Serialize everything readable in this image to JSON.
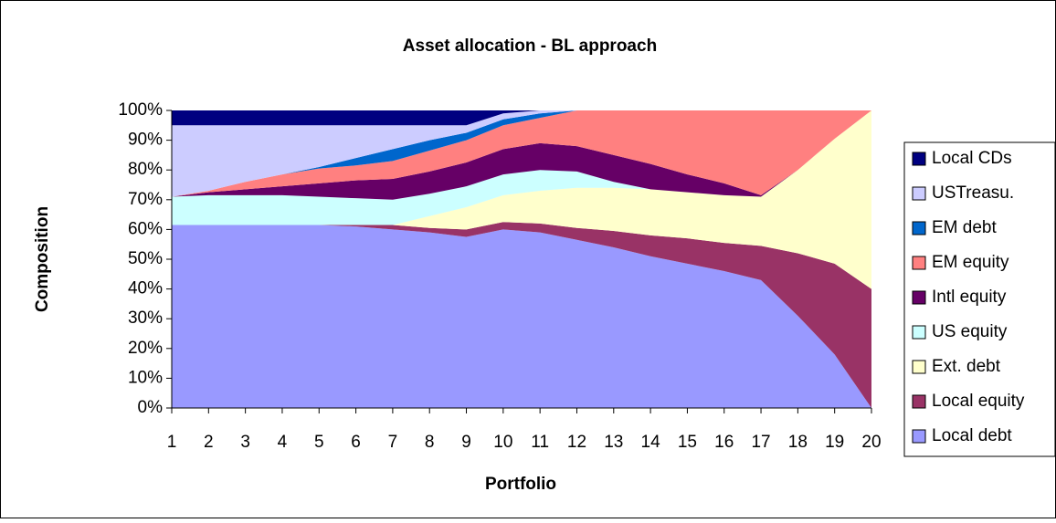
{
  "chart_data": {
    "type": "stacked_area",
    "title": "Asset allocation - BL approach",
    "xlabel": "Portfolio",
    "ylabel": "Composition",
    "categories": [
      "1",
      "2",
      "3",
      "4",
      "5",
      "6",
      "7",
      "8",
      "9",
      "10",
      "11",
      "12",
      "13",
      "14",
      "15",
      "16",
      "17",
      "18",
      "19",
      "20"
    ],
    "ylim": [
      0,
      100
    ],
    "yticks": [
      {
        "value": 0,
        "label": "0%"
      },
      {
        "value": 10,
        "label": "10%"
      },
      {
        "value": 20,
        "label": "20%"
      },
      {
        "value": 30,
        "label": "30%"
      },
      {
        "value": 40,
        "label": "40%"
      },
      {
        "value": 50,
        "label": "50%"
      },
      {
        "value": 60,
        "label": "60%"
      },
      {
        "value": 70,
        "label": "70%"
      },
      {
        "value": 80,
        "label": "80%"
      },
      {
        "value": 90,
        "label": "90%"
      },
      {
        "value": 100,
        "label": "100%"
      }
    ],
    "legend": "right",
    "series": [
      {
        "name": "Local debt",
        "color": "#9999ff",
        "values": [
          61.5,
          61.5,
          61.5,
          61.5,
          61.5,
          61,
          60,
          59,
          57.5,
          60,
          59,
          56.5,
          54,
          51,
          48.5,
          46,
          43,
          31,
          18,
          0
        ]
      },
      {
        "name": "Local equity",
        "color": "#993366",
        "values": [
          0,
          0,
          0,
          0,
          0,
          0.5,
          1.5,
          1.5,
          2.5,
          2.5,
          3,
          4,
          5.5,
          7,
          8.5,
          9.5,
          11.5,
          21,
          30.5,
          40
        ]
      },
      {
        "name": "Ext. debt",
        "color": "#ffffcc",
        "values": [
          0,
          0,
          0,
          0,
          0,
          0,
          0,
          4,
          7.5,
          9,
          11,
          13.5,
          14.5,
          15.5,
          15.5,
          16,
          16.5,
          28,
          42,
          60
        ]
      },
      {
        "name": "US equity",
        "color": "#ccffff",
        "values": [
          9.5,
          10,
          10,
          10,
          9.5,
          9,
          8.5,
          7.5,
          7,
          7,
          7,
          5.5,
          2,
          0,
          0,
          0,
          0,
          0,
          0,
          0
        ]
      },
      {
        "name": "Intl equity",
        "color": "#660066",
        "values": [
          0,
          1,
          2,
          3,
          4.5,
          6,
          7,
          7.5,
          8,
          8.5,
          9,
          8.5,
          9,
          8.5,
          6,
          4,
          0.5,
          0,
          0,
          0
        ]
      },
      {
        "name": "EM equity",
        "color": "#ff8080",
        "values": [
          0,
          0.5,
          2.5,
          4,
          5,
          5,
          6,
          7,
          7.5,
          8,
          8.5,
          12,
          15,
          18,
          21.5,
          24.5,
          28.5,
          20,
          9.5,
          0
        ]
      },
      {
        "name": "EM debt",
        "color": "#0066cc",
        "values": [
          0,
          0,
          0,
          0,
          0.5,
          2.5,
          4,
          3.5,
          2.5,
          2,
          1.5,
          0,
          0,
          0,
          0,
          0,
          0,
          0,
          0,
          0
        ]
      },
      {
        "name": "USTreasu.",
        "color": "#ccccff",
        "values": [
          24,
          22,
          19,
          16.5,
          14,
          11,
          8,
          5,
          2.5,
          2,
          1,
          0,
          0,
          0,
          0,
          0,
          0,
          0,
          0,
          0
        ]
      },
      {
        "name": "Local CDs",
        "color": "#000080",
        "values": [
          5,
          5,
          5,
          5,
          5,
          5,
          5,
          5,
          5,
          1,
          0,
          0,
          0,
          0,
          0,
          0,
          0,
          0,
          0,
          0
        ]
      }
    ]
  }
}
